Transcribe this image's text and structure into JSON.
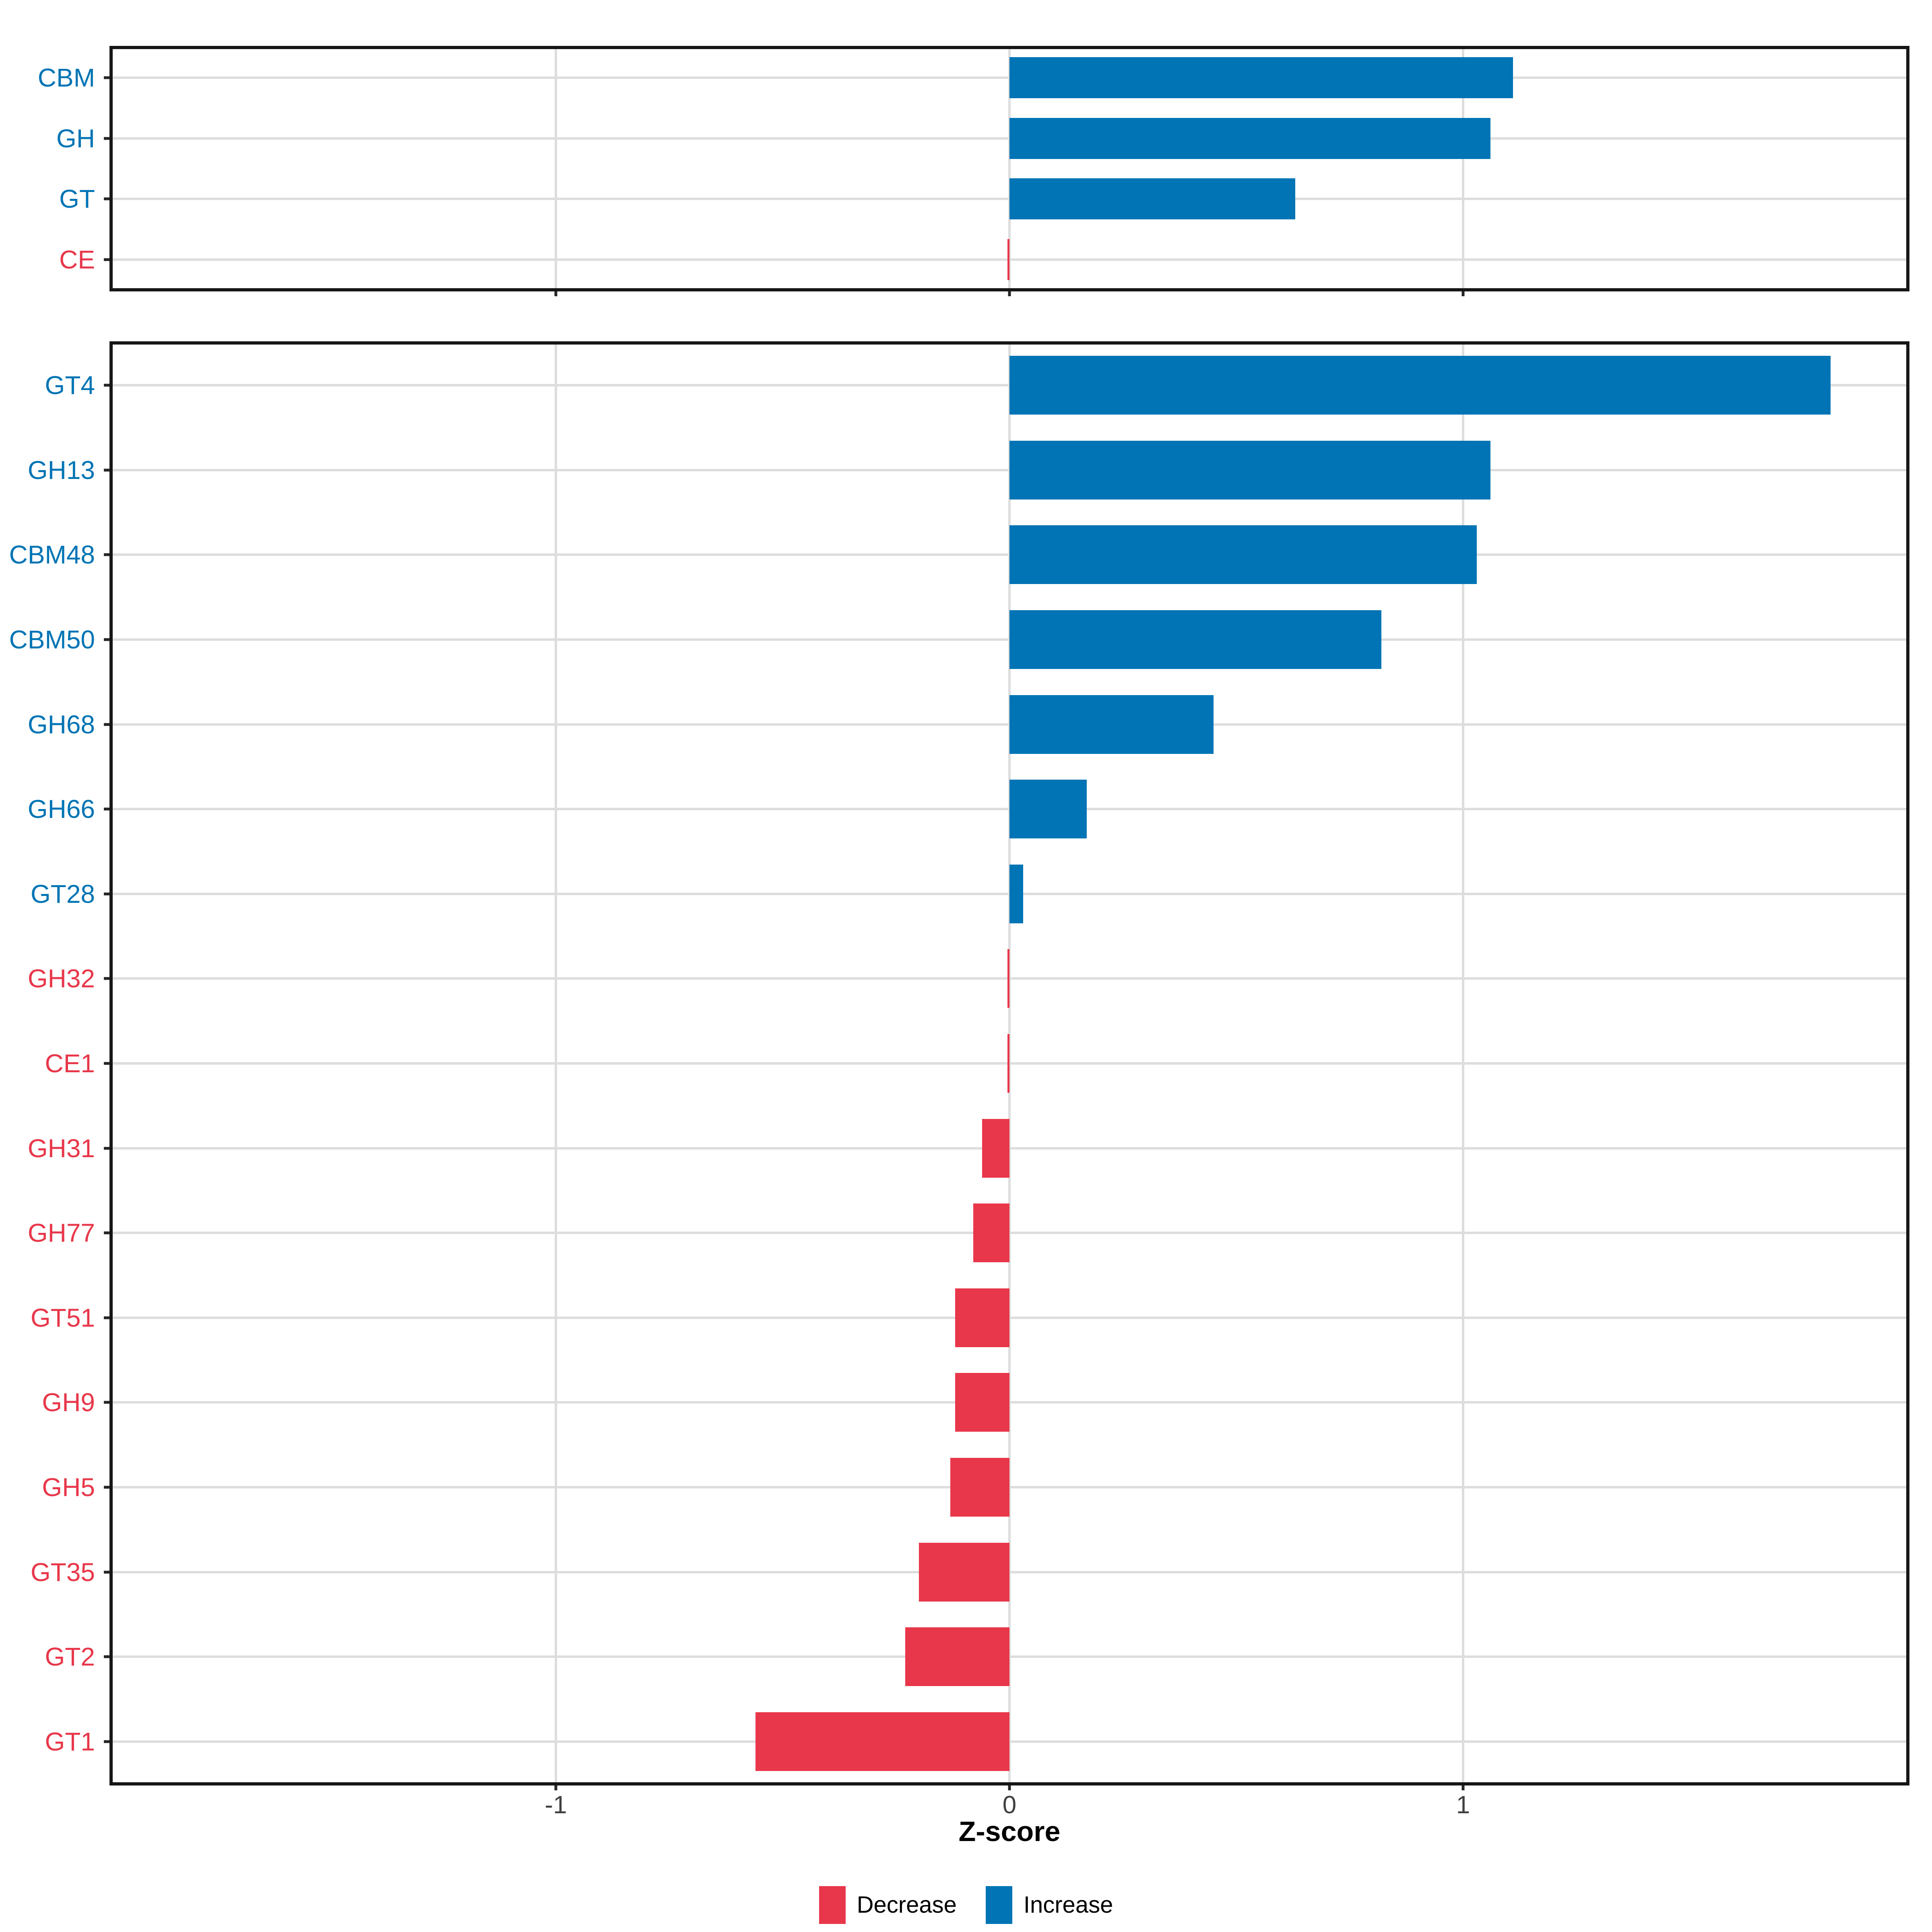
{
  "axis": {
    "xlabel": "Z-score",
    "tick_labels": [
      "-1",
      "0",
      "1"
    ]
  },
  "legend": {
    "items": [
      {
        "label": "Decrease",
        "color": "#E8374A"
      },
      {
        "label": "Increase",
        "color": "#0074B4"
      }
    ]
  },
  "colors": {
    "increase": "#0074B4",
    "decrease": "#E8374A",
    "grid": "#DDDDDD",
    "panel_border": "#161616",
    "axis_text": "#404040",
    "tick": "#262626"
  },
  "chart_data": [
    {
      "type": "bar",
      "orientation": "horizontal",
      "panel": "enzyme-classes",
      "title": "",
      "xlabel": "Z-score",
      "categories": [
        "CBM",
        "GH",
        "GT",
        "CE"
      ],
      "values": [
        1.11,
        1.06,
        0.63,
        -0.004
      ],
      "xlim": [
        -1.98,
        1.98
      ],
      "x_ticks": [
        -1,
        0,
        1
      ],
      "grid": true,
      "legend_position": "bottom",
      "color_rule": "negative = Decrease (red), positive = Increase (blue)"
    },
    {
      "type": "bar",
      "orientation": "horizontal",
      "panel": "enzyme-families",
      "title": "",
      "xlabel": "Z-score",
      "categories": [
        "GT4",
        "GH13",
        "CBM48",
        "CBM50",
        "GH68",
        "GH66",
        "GT28",
        "GH32",
        "CE1",
        "GH31",
        "GH77",
        "GT51",
        "GH9",
        "GH5",
        "GT35",
        "GT2",
        "GT1"
      ],
      "values": [
        1.81,
        1.06,
        1.03,
        0.82,
        0.45,
        0.17,
        0.03,
        -0.004,
        -0.004,
        -0.06,
        -0.08,
        -0.12,
        -0.12,
        -0.13,
        -0.2,
        -0.23,
        -0.56
      ],
      "xlim": [
        -1.98,
        1.98
      ],
      "x_ticks": [
        -1,
        0,
        1
      ],
      "grid": true,
      "legend_position": "bottom",
      "color_rule": "negative = Decrease (red), positive = Increase (blue)"
    }
  ]
}
